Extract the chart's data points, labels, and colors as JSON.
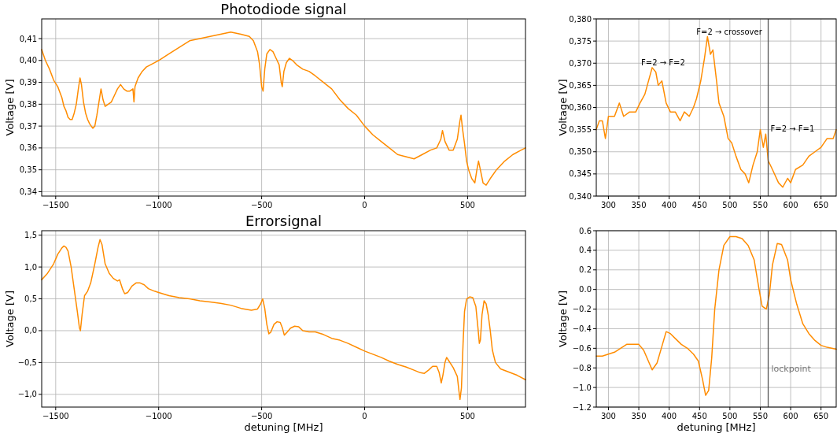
{
  "chart_data": [
    {
      "type": "line",
      "title": "Photodiode signal",
      "ylabel": "Voltage [V]",
      "xlim": [
        -1568,
        781
      ],
      "ylim": [
        0.338,
        0.419
      ],
      "xticks": [
        {
          "value": -1500,
          "label": "−1500"
        },
        {
          "value": -1000,
          "label": "−1000"
        },
        {
          "value": -500,
          "label": "−500"
        },
        0,
        500
      ],
      "yticks": [
        {
          "value": 0.34,
          "label": "0,34"
        },
        {
          "value": 0.35,
          "label": "0,35"
        },
        {
          "value": 0.36,
          "label": "0,36"
        },
        {
          "value": 0.37,
          "label": "0,37"
        },
        {
          "value": 0.38,
          "label": "0,38"
        },
        {
          "value": 0.39,
          "label": "0,39"
        },
        {
          "value": 0.4,
          "label": "0,40"
        },
        {
          "value": 0.41,
          "label": "0,41"
        }
      ],
      "grid": true,
      "series": [
        {
          "color": "#ff8c00",
          "x": [
            -1568,
            -1550,
            -1530,
            -1510,
            -1490,
            -1470,
            -1460,
            -1450,
            -1440,
            -1430,
            -1420,
            -1410,
            -1400,
            -1390,
            -1382,
            -1375,
            -1365,
            -1355,
            -1345,
            -1335,
            -1320,
            -1310,
            -1300,
            -1290,
            -1280,
            -1270,
            -1260,
            -1245,
            -1230,
            -1215,
            -1200,
            -1185,
            -1170,
            -1155,
            -1140,
            -1125,
            -1120,
            -1115,
            -1100,
            -1080,
            -1060,
            -1040,
            -1020,
            -1000,
            -950,
            -900,
            -850,
            -800,
            -750,
            -700,
            -650,
            -600,
            -560,
            -540,
            -520,
            -510,
            -500,
            -493,
            -485,
            -475,
            -460,
            -445,
            -430,
            -415,
            -405,
            -400,
            -392,
            -380,
            -365,
            -350,
            -330,
            -300,
            -270,
            -240,
            -200,
            -160,
            -120,
            -80,
            -40,
            0,
            40,
            80,
            120,
            160,
            200,
            240,
            280,
            320,
            350,
            370,
            378,
            390,
            410,
            430,
            450,
            462,
            468,
            475,
            485,
            495,
            505,
            520,
            535,
            545,
            553,
            562,
            575,
            590,
            610,
            640,
            680,
            720,
            760,
            781
          ],
          "values": [
            0.405,
            0.4,
            0.396,
            0.391,
            0.388,
            0.383,
            0.379,
            0.377,
            0.374,
            0.373,
            0.373,
            0.376,
            0.38,
            0.387,
            0.392,
            0.389,
            0.381,
            0.376,
            0.373,
            0.371,
            0.369,
            0.37,
            0.375,
            0.381,
            0.387,
            0.382,
            0.379,
            0.38,
            0.381,
            0.384,
            0.387,
            0.389,
            0.387,
            0.386,
            0.386,
            0.387,
            0.381,
            0.388,
            0.392,
            0.395,
            0.397,
            0.398,
            0.399,
            0.4,
            0.403,
            0.406,
            0.409,
            0.41,
            0.411,
            0.412,
            0.413,
            0.412,
            0.411,
            0.409,
            0.404,
            0.398,
            0.388,
            0.386,
            0.396,
            0.403,
            0.405,
            0.404,
            0.401,
            0.398,
            0.39,
            0.388,
            0.395,
            0.399,
            0.401,
            0.4,
            0.398,
            0.396,
            0.395,
            0.393,
            0.39,
            0.387,
            0.382,
            0.378,
            0.375,
            0.37,
            0.366,
            0.363,
            0.36,
            0.357,
            0.356,
            0.355,
            0.357,
            0.359,
            0.36,
            0.364,
            0.368,
            0.363,
            0.359,
            0.359,
            0.364,
            0.372,
            0.375,
            0.369,
            0.362,
            0.354,
            0.35,
            0.346,
            0.344,
            0.35,
            0.354,
            0.35,
            0.344,
            0.343,
            0.346,
            0.35,
            0.354,
            0.357,
            0.359,
            0.36
          ]
        }
      ]
    },
    {
      "type": "line",
      "title": "Errorsignal",
      "xlabel": "detuning [MHz]",
      "ylabel": "Voltage [V]",
      "xlim": [
        -1568,
        781
      ],
      "ylim": [
        -1.2,
        1.57
      ],
      "xticks": [
        {
          "value": -1500,
          "label": "−1500"
        },
        {
          "value": -1000,
          "label": "−1000"
        },
        {
          "value": -500,
          "label": "−500"
        },
        0,
        500
      ],
      "yticks": [
        {
          "value": -1.0,
          "label": "−1,0"
        },
        {
          "value": -0.5,
          "label": "−0,5"
        },
        {
          "value": 0,
          "label": "0,0"
        },
        {
          "value": 0.5,
          "label": "0,5"
        },
        {
          "value": 1.0,
          "label": "1,0"
        },
        {
          "value": 1.5,
          "label": "1,5"
        }
      ],
      "grid": true,
      "series": [
        {
          "color": "#ff8c00",
          "x": [
            -1568,
            -1540,
            -1510,
            -1490,
            -1470,
            -1460,
            -1450,
            -1440,
            -1425,
            -1410,
            -1395,
            -1385,
            -1380,
            -1372,
            -1360,
            -1345,
            -1330,
            -1310,
            -1295,
            -1285,
            -1275,
            -1260,
            -1240,
            -1220,
            -1200,
            -1190,
            -1175,
            -1165,
            -1150,
            -1130,
            -1110,
            -1090,
            -1070,
            -1050,
            -1020,
            -1000,
            -950,
            -900,
            -850,
            -800,
            -750,
            -700,
            -650,
            -600,
            -550,
            -520,
            -505,
            -495,
            -485,
            -475,
            -465,
            -455,
            -440,
            -425,
            -410,
            -400,
            -390,
            -375,
            -360,
            -340,
            -320,
            -300,
            -270,
            -240,
            -200,
            -160,
            -120,
            -80,
            -40,
            0,
            40,
            80,
            120,
            160,
            200,
            240,
            270,
            290,
            310,
            330,
            350,
            362,
            372,
            380,
            390,
            398,
            410,
            430,
            450,
            458,
            463,
            470,
            478,
            485,
            495,
            510,
            525,
            540,
            550,
            557,
            562,
            570,
            580,
            590,
            600,
            610,
            620,
            635,
            660,
            700,
            740,
            781
          ],
          "values": [
            0.8,
            0.9,
            1.05,
            1.2,
            1.3,
            1.33,
            1.31,
            1.25,
            1.0,
            0.65,
            0.3,
            0.05,
            0.0,
            0.25,
            0.55,
            0.62,
            0.75,
            1.05,
            1.3,
            1.43,
            1.35,
            1.05,
            0.9,
            0.82,
            0.78,
            0.8,
            0.65,
            0.58,
            0.6,
            0.7,
            0.75,
            0.75,
            0.72,
            0.66,
            0.62,
            0.6,
            0.55,
            0.52,
            0.5,
            0.47,
            0.45,
            0.43,
            0.4,
            0.35,
            0.32,
            0.34,
            0.42,
            0.5,
            0.35,
            0.1,
            -0.05,
            -0.02,
            0.1,
            0.14,
            0.13,
            0.05,
            -0.07,
            -0.02,
            0.04,
            0.07,
            0.06,
            0.0,
            -0.02,
            -0.02,
            -0.06,
            -0.12,
            -0.15,
            -0.2,
            -0.26,
            -0.32,
            -0.37,
            -0.42,
            -0.48,
            -0.53,
            -0.57,
            -0.62,
            -0.66,
            -0.67,
            -0.62,
            -0.56,
            -0.56,
            -0.66,
            -0.82,
            -0.7,
            -0.5,
            -0.42,
            -0.48,
            -0.58,
            -0.72,
            -0.95,
            -1.08,
            -0.9,
            -0.2,
            0.3,
            0.5,
            0.53,
            0.52,
            0.38,
            0.05,
            -0.2,
            -0.15,
            0.25,
            0.47,
            0.42,
            0.25,
            0.0,
            -0.3,
            -0.5,
            -0.6,
            -0.65,
            -0.7,
            -0.77
          ]
        }
      ]
    },
    {
      "type": "line",
      "ylabel": "Voltage [V]",
      "xlim": [
        280,
        675
      ],
      "ylim": [
        0.34,
        0.38
      ],
      "xticks": [
        300,
        350,
        400,
        450,
        500,
        550,
        600,
        650
      ],
      "yticks": [
        {
          "value": 0.34,
          "label": "0,340"
        },
        {
          "value": 0.345,
          "label": "0,345"
        },
        {
          "value": 0.35,
          "label": "0,350"
        },
        {
          "value": 0.355,
          "label": "0,355"
        },
        {
          "value": 0.36,
          "label": "0,360"
        },
        {
          "value": 0.365,
          "label": "0,365"
        },
        {
          "value": 0.37,
          "label": "0,370"
        },
        {
          "value": 0.375,
          "label": "0,375"
        },
        {
          "value": 0.38,
          "label": "0,380"
        }
      ],
      "grid": true,
      "annotations": [
        {
          "text": "F=2 → F=2",
          "x": 372,
          "y": 0.369
        },
        {
          "text": "F=2 → crossover",
          "x": 463,
          "y": 0.376
        },
        {
          "text": "F=2 → F=1",
          "x": 563,
          "y": 0.3545
        }
      ],
      "ref_lines": [
        {
          "axis": "x",
          "value": 563,
          "color": "#555555"
        }
      ],
      "series": [
        {
          "color": "#ff8c00",
          "x": [
            280,
            285,
            290,
            295,
            300,
            310,
            318,
            325,
            335,
            345,
            352,
            360,
            368,
            372,
            378,
            382,
            388,
            395,
            402,
            410,
            418,
            425,
            433,
            440,
            445,
            452,
            458,
            463,
            468,
            472,
            478,
            482,
            490,
            497,
            503,
            510,
            518,
            525,
            531,
            538,
            545,
            550,
            555,
            559,
            563,
            570,
            580,
            587,
            595,
            600,
            608,
            620,
            630,
            640,
            650,
            660,
            670,
            675
          ],
          "values": [
            0.355,
            0.357,
            0.357,
            0.353,
            0.358,
            0.358,
            0.361,
            0.358,
            0.359,
            0.359,
            0.361,
            0.363,
            0.367,
            0.369,
            0.368,
            0.365,
            0.366,
            0.361,
            0.359,
            0.359,
            0.357,
            0.359,
            0.358,
            0.36,
            0.362,
            0.366,
            0.371,
            0.376,
            0.372,
            0.373,
            0.366,
            0.361,
            0.358,
            0.353,
            0.352,
            0.349,
            0.346,
            0.345,
            0.343,
            0.347,
            0.35,
            0.355,
            0.351,
            0.354,
            0.348,
            0.346,
            0.343,
            0.342,
            0.344,
            0.343,
            0.346,
            0.347,
            0.349,
            0.35,
            0.351,
            0.353,
            0.353,
            0.355
          ]
        }
      ]
    },
    {
      "type": "line",
      "xlabel": "detuning [MHz]",
      "ylabel": "Voltage [V]",
      "xlim": [
        280,
        675
      ],
      "ylim": [
        -1.2,
        0.6
      ],
      "xticks": [
        300,
        350,
        400,
        450,
        500,
        550,
        600,
        650
      ],
      "yticks": [
        {
          "value": -1.2,
          "label": "−1.2"
        },
        {
          "value": -1.0,
          "label": "−1.0"
        },
        {
          "value": -0.8,
          "label": "−0.8"
        },
        {
          "value": -0.6,
          "label": "−0.6"
        },
        {
          "value": -0.4,
          "label": "−0.4"
        },
        {
          "value": -0.2,
          "label": "−0.2"
        },
        {
          "value": 0,
          "label": "0.0"
        },
        {
          "value": 0.2,
          "label": "0.2"
        },
        {
          "value": 0.4,
          "label": "0.4"
        },
        {
          "value": 0.6,
          "label": "0.6"
        }
      ],
      "grid": true,
      "ref_lines": [
        {
          "axis": "x",
          "value": 563,
          "label": "lockpoint",
          "color": "#555555"
        }
      ],
      "series": [
        {
          "color": "#ff8c00",
          "x": [
            280,
            290,
            300,
            310,
            320,
            330,
            340,
            350,
            358,
            365,
            372,
            380,
            388,
            395,
            402,
            410,
            420,
            430,
            440,
            448,
            455,
            460,
            465,
            470,
            475,
            482,
            490,
            500,
            510,
            520,
            530,
            540,
            548,
            553,
            560,
            565,
            570,
            578,
            585,
            595,
            600,
            610,
            620,
            630,
            640,
            650,
            660,
            675
          ],
          "values": [
            -0.68,
            -0.68,
            -0.66,
            -0.64,
            -0.6,
            -0.56,
            -0.56,
            -0.56,
            -0.62,
            -0.72,
            -0.82,
            -0.75,
            -0.58,
            -0.43,
            -0.45,
            -0.5,
            -0.56,
            -0.6,
            -0.66,
            -0.73,
            -0.92,
            -1.08,
            -1.03,
            -0.7,
            -0.2,
            0.2,
            0.45,
            0.54,
            0.54,
            0.52,
            0.45,
            0.3,
            0.0,
            -0.17,
            -0.2,
            -0.05,
            0.25,
            0.47,
            0.46,
            0.3,
            0.1,
            -0.15,
            -0.35,
            -0.45,
            -0.52,
            -0.57,
            -0.59,
            -0.61
          ]
        }
      ]
    }
  ]
}
